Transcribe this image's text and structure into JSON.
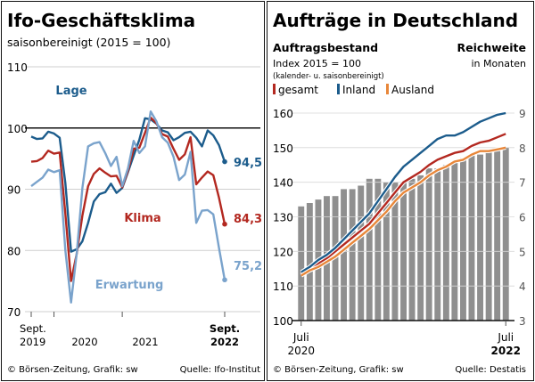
{
  "chart_data": [
    {
      "type": "line",
      "title": "Ifo-Geschäftsklima",
      "subtitle": "saisonbereinigt (2015 = 100)",
      "ylim": [
        70,
        110
      ],
      "yticks": [
        "110",
        "100",
        "90",
        "80",
        "70"
      ],
      "xticks": [
        {
          "line1": "Sept.",
          "line2": "2019"
        },
        {
          "line1": "",
          "line2": "2020"
        },
        {
          "line1": "",
          "line2": "2021"
        },
        {
          "line1": "Sept.",
          "line2": "2022"
        }
      ],
      "reference_line": 100,
      "x_start": "2019-09",
      "x_step": "month",
      "series": [
        {
          "name": "Lage",
          "color": "#1c5c8c",
          "end_label": "94,5",
          "values": [
            98.6,
            98.2,
            98.3,
            99.4,
            99.1,
            98.4,
            91.0,
            79.8,
            80.2,
            81.5,
            84.5,
            88.0,
            89.2,
            89.5,
            90.9,
            89.4,
            90.2,
            92.8,
            95.5,
            98.1,
            101.6,
            101.4,
            100.7,
            99.6,
            99.3,
            98.0,
            98.5,
            99.2,
            99.4,
            98.4,
            97.0,
            99.6,
            98.8,
            97.2,
            94.5
          ]
        },
        {
          "name": "Klima",
          "color": "#b32820",
          "end_label": "84,3",
          "values": [
            94.5,
            94.6,
            95.1,
            96.3,
            95.8,
            96.0,
            86.0,
            75.0,
            79.5,
            85.7,
            90.5,
            92.5,
            93.4,
            92.7,
            92.1,
            92.2,
            90.3,
            93.0,
            96.6,
            96.8,
            99.2,
            101.7,
            100.8,
            99.0,
            98.6,
            96.6,
            94.8,
            95.7,
            98.5,
            90.8,
            91.9,
            92.9,
            92.3,
            88.6,
            84.3
          ]
        },
        {
          "name": "Erwartung",
          "color": "#7aa3cc",
          "end_label": "75,2",
          "values": [
            90.5,
            91.2,
            91.9,
            93.2,
            92.8,
            93.1,
            80.0,
            71.5,
            79.6,
            90.2,
            97.0,
            97.5,
            97.7,
            95.9,
            93.8,
            95.3,
            90.5,
            93.4,
            97.9,
            95.9,
            97.0,
            102.7,
            101.1,
            98.5,
            97.6,
            95.3,
            91.5,
            92.4,
            96.1,
            84.5,
            86.5,
            86.6,
            85.9,
            80.4,
            75.2
          ]
        }
      ],
      "source_left": "© Börsen-Zeitung, Grafik: sw",
      "source_right": "Quelle: Ifo-Institut"
    },
    {
      "type": "bar+line",
      "title": "Aufträge in Deutschland",
      "left_axis_title": "Auftragsbestand",
      "left_axis_subtitle": "Index 2015 = 100",
      "left_axis_note": "(kalender- u. saisonbereinigt)",
      "right_axis_title_1": "Reichweite",
      "right_axis_title_2": "in Monaten",
      "ylim_left": [
        100,
        160
      ],
      "yticks_left": [
        "160",
        "150",
        "140",
        "130",
        "120",
        "110",
        "100"
      ],
      "ylim_right": [
        3,
        9
      ],
      "yticks_right": [
        "9",
        "8",
        "7",
        "6",
        "5",
        "4",
        "3"
      ],
      "xticks": [
        {
          "line1": "Juli",
          "line2": "2020"
        },
        {
          "line1": "Juli",
          "line2": "2022"
        }
      ],
      "x_start": "2020-07",
      "x_step": "month",
      "bars": {
        "name": "Reichweite",
        "color": "#8f8f8f",
        "values": [
          6.3,
          6.4,
          6.5,
          6.6,
          6.6,
          6.8,
          6.8,
          6.9,
          7.1,
          7.1,
          7.0,
          7.0,
          7.0,
          7.1,
          7.2,
          7.4,
          7.4,
          7.5,
          7.6,
          7.7,
          7.8,
          7.8,
          7.9,
          7.9,
          8.0
        ]
      },
      "series": [
        {
          "name": "gesamt",
          "color": "#b32820",
          "values": [
            113.5,
            115.0,
            116.5,
            118.0,
            120.0,
            122.0,
            124.0,
            126.0,
            128.0,
            131.0,
            134.0,
            137.0,
            140.0,
            141.5,
            143.0,
            145.0,
            146.5,
            147.5,
            148.5,
            149.0,
            150.5,
            151.5,
            152.0,
            153.0,
            154.0
          ]
        },
        {
          "name": "Inland",
          "color": "#1c5c8c",
          "values": [
            114.0,
            115.5,
            117.5,
            119.0,
            121.0,
            123.5,
            126.0,
            128.5,
            131.0,
            134.5,
            138.0,
            141.5,
            144.5,
            146.5,
            148.5,
            150.5,
            152.5,
            153.5,
            153.5,
            154.5,
            156.0,
            157.5,
            158.5,
            159.5,
            160.0
          ]
        },
        {
          "name": "Ausland",
          "color": "#e8873a",
          "values": [
            113.0,
            114.5,
            115.5,
            117.0,
            118.5,
            120.5,
            122.5,
            124.5,
            126.5,
            129.0,
            131.5,
            134.5,
            137.0,
            138.5,
            140.0,
            142.0,
            143.5,
            144.5,
            146.0,
            146.5,
            148.0,
            149.0,
            149.0,
            149.5,
            150.0
          ]
        }
      ],
      "source_left": "© Börsen-Zeitung, Grafik: sw",
      "source_right": "Quelle: Destatis"
    }
  ]
}
